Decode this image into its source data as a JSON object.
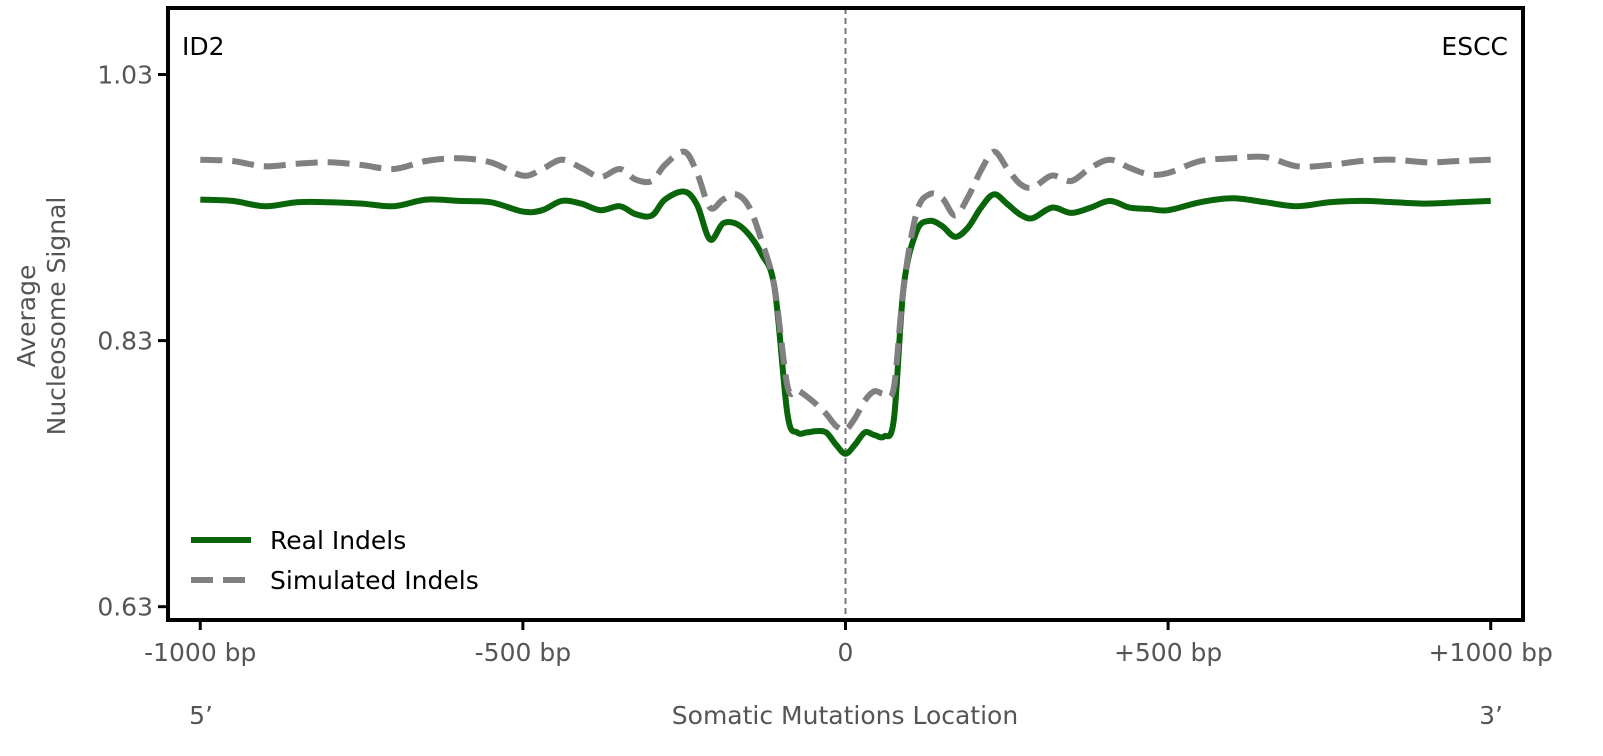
{
  "chart_data": {
    "type": "line",
    "xlabel": "Somatic Mutations Location",
    "ylabel_lines": [
      "Average",
      "Nucleosome Signal"
    ],
    "annotations": {
      "top_left": "ID2",
      "top_right": "ESCC",
      "bottom_left": "5’",
      "bottom_right": "3’"
    },
    "xlim": [
      -1050,
      1050
    ],
    "ylim": [
      0.62,
      1.08
    ],
    "x_ticks": [
      -1000,
      -500,
      0,
      500,
      1000
    ],
    "x_tick_labels": [
      "-1000 bp",
      "-500 bp",
      "0",
      "+500 bp",
      "+1000 bp"
    ],
    "y_ticks": [
      0.63,
      0.83,
      1.03
    ],
    "y_tick_labels": [
      "0.63",
      "0.83",
      "1.03"
    ],
    "grid": false,
    "legend_position": "lower-left",
    "vline_x": 0,
    "x": [
      -1000,
      -950,
      -900,
      -850,
      -800,
      -750,
      -700,
      -650,
      -600,
      -550,
      -500,
      -470,
      -440,
      -410,
      -380,
      -350,
      -325,
      -300,
      -280,
      -250,
      -230,
      -210,
      -190,
      -170,
      -150,
      -130,
      -110,
      -90,
      -75,
      -60,
      -45,
      -30,
      -15,
      0,
      15,
      30,
      45,
      60,
      75,
      90,
      110,
      130,
      150,
      170,
      190,
      210,
      230,
      250,
      270,
      290,
      320,
      350,
      380,
      410,
      440,
      470,
      500,
      550,
      600,
      650,
      700,
      750,
      800,
      850,
      900,
      950,
      1000
    ],
    "series": [
      {
        "name": "Real Indels",
        "color": "#0a650a",
        "dash": "solid",
        "values": [
          0.936,
          0.935,
          0.931,
          0.934,
          0.934,
          0.933,
          0.931,
          0.936,
          0.935,
          0.934,
          0.927,
          0.928,
          0.935,
          0.933,
          0.928,
          0.931,
          0.925,
          0.924,
          0.936,
          0.942,
          0.932,
          0.906,
          0.918,
          0.918,
          0.91,
          0.895,
          0.87,
          0.775,
          0.761,
          0.761,
          0.762,
          0.761,
          0.752,
          0.745,
          0.752,
          0.761,
          0.759,
          0.758,
          0.771,
          0.87,
          0.912,
          0.92,
          0.916,
          0.908,
          0.915,
          0.93,
          0.94,
          0.933,
          0.925,
          0.922,
          0.93,
          0.926,
          0.93,
          0.935,
          0.93,
          0.929,
          0.928,
          0.934,
          0.937,
          0.934,
          0.931,
          0.934,
          0.935,
          0.934,
          0.933,
          0.934,
          0.935
        ]
      },
      {
        "name": "Simulated Indels",
        "color": "#808080",
        "dash": "dashed",
        "values": [
          0.966,
          0.965,
          0.961,
          0.963,
          0.964,
          0.962,
          0.959,
          0.965,
          0.967,
          0.964,
          0.954,
          0.959,
          0.966,
          0.96,
          0.953,
          0.959,
          0.951,
          0.95,
          0.962,
          0.972,
          0.956,
          0.93,
          0.936,
          0.94,
          0.931,
          0.905,
          0.87,
          0.796,
          0.793,
          0.788,
          0.782,
          0.775,
          0.766,
          0.763,
          0.772,
          0.785,
          0.792,
          0.79,
          0.795,
          0.87,
          0.926,
          0.94,
          0.937,
          0.924,
          0.938,
          0.958,
          0.972,
          0.96,
          0.948,
          0.945,
          0.954,
          0.95,
          0.96,
          0.966,
          0.96,
          0.955,
          0.956,
          0.965,
          0.967,
          0.968,
          0.961,
          0.962,
          0.965,
          0.966,
          0.964,
          0.965,
          0.966
        ]
      }
    ]
  }
}
